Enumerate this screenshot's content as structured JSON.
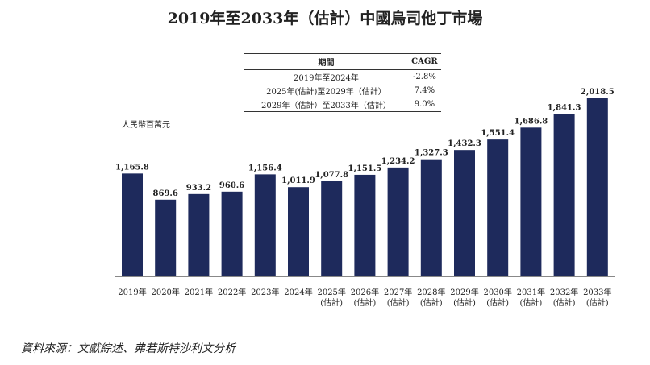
{
  "title": "2019年至2033年（估計）中國烏司他丁市場",
  "cagr_table": {
    "headers": [
      "期間",
      "CAGR"
    ],
    "rows": [
      [
        "2019年至2024年",
        "-2.8%"
      ],
      [
        "2025年(估計)至2029年（估計）",
        "7.4%"
      ],
      [
        "2029年（估計）至2033年（估計）",
        "9.0%"
      ]
    ]
  },
  "chart_data": {
    "type": "bar",
    "ylabel": "人民幣百萬元",
    "categories": [
      "2019年",
      "2020年",
      "2021年",
      "2022年",
      "2023年",
      "2024年",
      "2025年",
      "2026年",
      "2027年",
      "2028年",
      "2029年",
      "2030年",
      "2031年",
      "2032年",
      "2033年"
    ],
    "category_sublabels": [
      "",
      "",
      "",
      "",
      "",
      "",
      "(估計)",
      "(估計)",
      "(估計)",
      "(估計)",
      "(估計)",
      "(估計)",
      "(估計)",
      "(估計)",
      "(估計)"
    ],
    "values": [
      1165.8,
      869.6,
      933.2,
      960.6,
      1156.4,
      1011.9,
      1077.8,
      1151.5,
      1234.2,
      1327.3,
      1432.3,
      1551.4,
      1686.8,
      1841.3,
      2018.5
    ],
    "value_labels": [
      "1,165.8",
      "869.6",
      "933.2",
      "960.6",
      "1,156.4",
      "1,011.9",
      "1,077.8",
      "1,151.5",
      "1,234.2",
      "1,327.3",
      "1,432.3",
      "1,551.4",
      "1,686.8",
      "1,841.3",
      "2,018.5"
    ],
    "ylim": [
      0,
      2018.5
    ],
    "bar_color": "#1e2a5c",
    "grid": false
  },
  "source": "資料來源：文獻綜述、弗若斯特沙利文分析"
}
